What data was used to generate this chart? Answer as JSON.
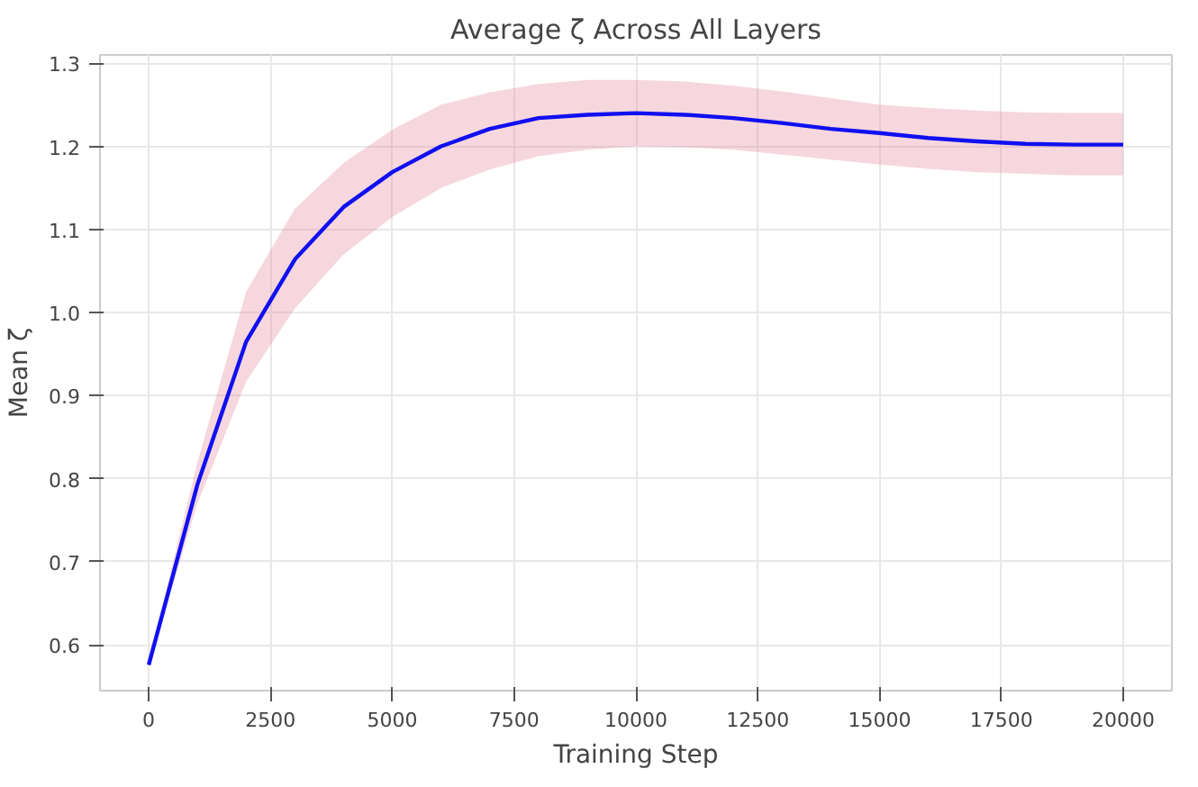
{
  "chart_data": {
    "type": "line",
    "title": "Average ζ Across All Layers",
    "xlabel": "Training Step",
    "ylabel": "Mean ζ",
    "x": [
      0,
      1000,
      2000,
      3000,
      4000,
      5000,
      6000,
      7000,
      8000,
      9000,
      10000,
      11000,
      12000,
      13000,
      14000,
      15000,
      16000,
      17000,
      18000,
      19000,
      20000
    ],
    "series": [
      {
        "color": "#1010f0",
        "values": [
          0.576,
          0.793,
          0.965,
          1.064,
          1.127,
          1.169,
          1.2,
          1.221,
          1.234,
          1.238,
          1.24,
          1.238,
          1.234,
          1.228,
          1.221,
          1.216,
          1.21,
          1.206,
          1.203,
          1.202,
          1.202
        ],
        "lower": [
          0.575,
          0.77,
          0.917,
          1.005,
          1.07,
          1.115,
          1.15,
          1.172,
          1.188,
          1.196,
          1.2,
          1.199,
          1.196,
          1.19,
          1.184,
          1.178,
          1.173,
          1.169,
          1.167,
          1.165,
          1.165
        ],
        "upper": [
          0.58,
          0.82,
          1.025,
          1.125,
          1.18,
          1.22,
          1.25,
          1.265,
          1.275,
          1.28,
          1.28,
          1.278,
          1.273,
          1.266,
          1.258,
          1.25,
          1.246,
          1.243,
          1.241,
          1.24,
          1.24
        ]
      }
    ],
    "xlim": [
      -1000,
      21000
    ],
    "ylim": [
      0.545,
      1.31
    ],
    "xticks": [
      0,
      2500,
      5000,
      7500,
      10000,
      12500,
      15000,
      17500,
      20000
    ],
    "yticks": [
      0.6,
      0.7,
      0.8,
      0.9,
      {
        "value": 1.0,
        "label": "1.0"
      },
      1.1,
      1.2,
      1.3
    ],
    "grid": true,
    "line_style": "solid"
  }
}
